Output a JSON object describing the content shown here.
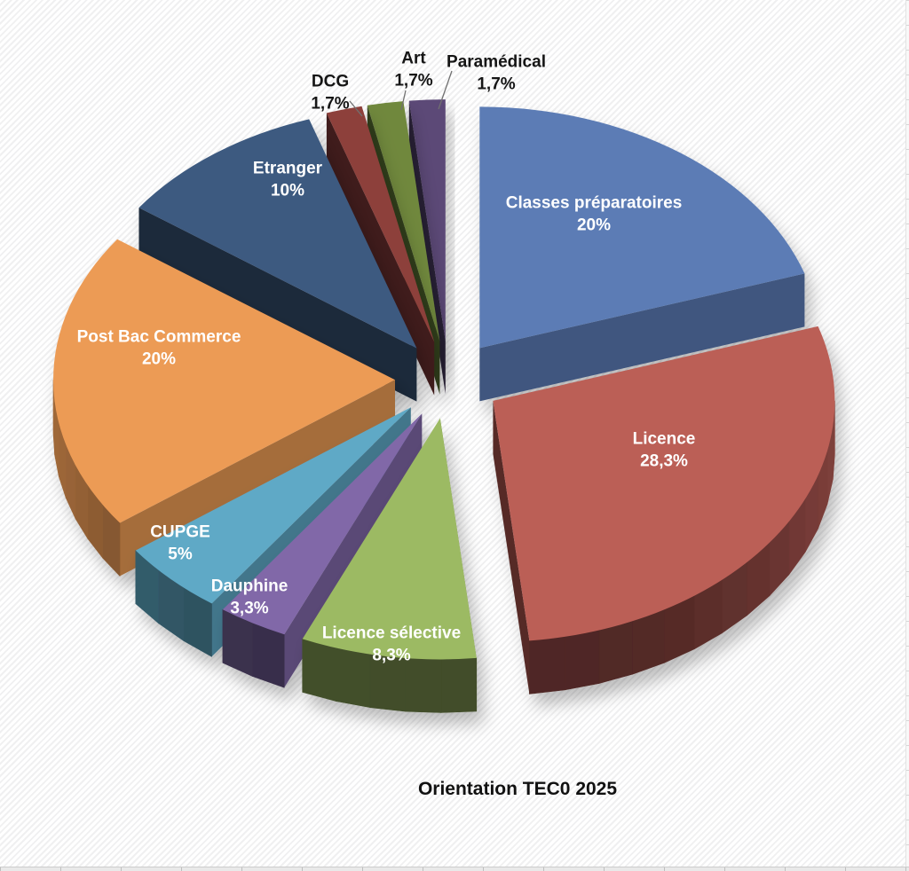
{
  "chart_data": {
    "type": "pie",
    "variant": "3d-exploded",
    "title": "Orientation TEC0 2025",
    "legend_position": "none",
    "data_labels": "category name + percentage",
    "decimal_style": "comma",
    "slices": [
      {
        "label": "Classes préparatoires",
        "value": 20,
        "pct_label": "20%",
        "color": "#5b7cb5",
        "label_color": "#ffffff"
      },
      {
        "label": "Licence",
        "value": 28.3,
        "pct_label": "28,3%",
        "color": "#bb5e57",
        "label_color": "#ffffff"
      },
      {
        "label": "Licence sélective",
        "value": 8.3,
        "pct_label": "8,3%",
        "color": "#9cba64",
        "label_color": "#ffffff"
      },
      {
        "label": "Dauphine",
        "value": 3.3,
        "pct_label": "3,3%",
        "color": "#8168a8",
        "label_color": "#ffffff"
      },
      {
        "label": "CUPGE",
        "value": 5,
        "pct_label": "5%",
        "color": "#5fa9c6",
        "label_color": "#ffffff"
      },
      {
        "label": "Post Bac Commerce",
        "value": 20,
        "pct_label": "20%",
        "color": "#ec9b55",
        "label_color": "#ffffff"
      },
      {
        "label": "Etranger",
        "value": 10,
        "pct_label": "10%",
        "color": "#3d5a80",
        "label_color": "#ffffff"
      },
      {
        "label": "DCG",
        "value": 1.7,
        "pct_label": "1,7%",
        "color": "#8d3f3b",
        "label_color": "#151515"
      },
      {
        "label": "Art",
        "value": 1.7,
        "pct_label": "1,7%",
        "color": "#6f883d",
        "label_color": "#151515"
      },
      {
        "label": "Paramédical",
        "value": 1.7,
        "pct_label": "1,7%",
        "color": "#5c4877",
        "label_color": "#151515"
      }
    ]
  },
  "background": {
    "style": "diagonal-stripes",
    "stripe_light": "#ffffff",
    "stripe_dark": "#f0f0f1"
  }
}
